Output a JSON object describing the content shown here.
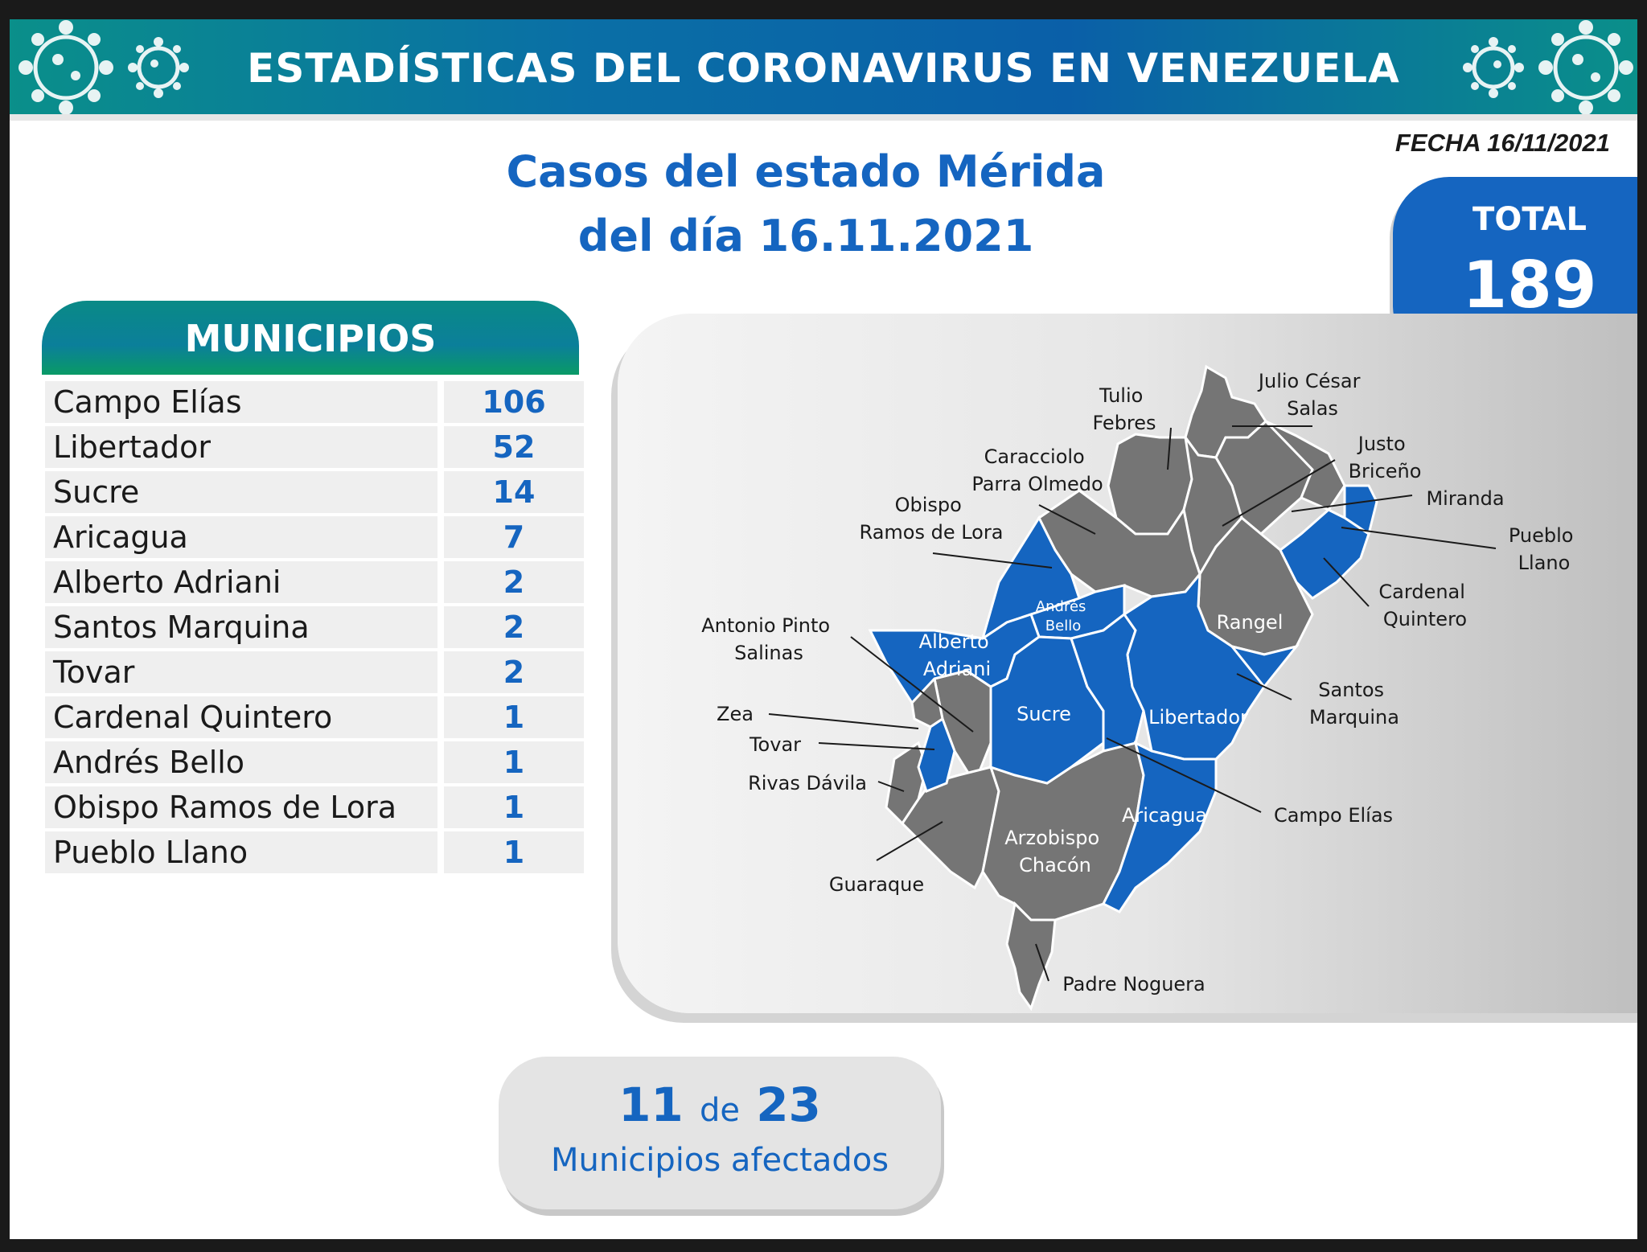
{
  "banner": {
    "title": "ESTADÍSTICAS DEL CORONAVIRUS EN VENEZUELA",
    "icons": [
      "virus-icon",
      "virus-icon"
    ]
  },
  "fecha": "FECHA 16/11/2021",
  "title": {
    "line1": "Casos del estado Mérida",
    "line2": "del día 16.11.2021"
  },
  "total": {
    "label": "TOTAL",
    "value": "189"
  },
  "municipios": {
    "header": "MUNICIPIOS",
    "rows": [
      {
        "name": "Campo Elías",
        "value": "106"
      },
      {
        "name": "Libertador",
        "value": "52"
      },
      {
        "name": "Sucre",
        "value": "14"
      },
      {
        "name": "Aricagua",
        "value": "7"
      },
      {
        "name": "Alberto Adriani",
        "value": "2"
      },
      {
        "name": "Santos Marquina",
        "value": "2"
      },
      {
        "name": "Tovar",
        "value": "2"
      },
      {
        "name": "Cardenal Quintero",
        "value": "1"
      },
      {
        "name": "Andrés Bello",
        "value": "1"
      },
      {
        "name": "Obispo Ramos de Lora",
        "value": "1"
      },
      {
        "name": "Pueblo Llano",
        "value": "1"
      }
    ]
  },
  "map": {
    "colors": {
      "affected": "#1565c0",
      "unaffected": "#757575"
    },
    "outer_labels": {
      "tulio_febres": [
        "Tulio",
        "Febres"
      ],
      "julio_cesar_salas": [
        "Julio César",
        "Salas"
      ],
      "justo_briceno": [
        "Justo",
        "Briceño"
      ],
      "caracciolo": [
        "Caracciolo",
        "Parra Olmedo"
      ],
      "miranda": [
        "Miranda"
      ],
      "obispo": [
        "Obispo",
        "Ramos de Lora"
      ],
      "pueblo_llano": [
        "Pueblo",
        "Llano"
      ],
      "cardenal_quintero": [
        "Cardenal",
        "Quintero"
      ],
      "antonio_pinto": [
        "Antonio Pinto",
        "Salinas"
      ],
      "santos_marquina": [
        "Santos",
        "Marquina"
      ],
      "zea": [
        "Zea"
      ],
      "tovar": [
        "Tovar"
      ],
      "rivas_davila": [
        "Rivas Dávila"
      ],
      "campo_elias": [
        "Campo Elías"
      ],
      "guaraque": [
        "Guaraque"
      ],
      "padre_noguera": [
        "Padre Noguera"
      ]
    },
    "inner_labels": {
      "andres_bello": [
        "Andrés",
        "Bello"
      ],
      "alberto_adriani": [
        "Alberto",
        "Adriani"
      ],
      "rangel": [
        "Rangel"
      ],
      "sucre": [
        "Sucre"
      ],
      "libertador": [
        "Libertador"
      ],
      "aricagua": [
        "Aricagua"
      ],
      "arzobispo_chacon": [
        "Arzobispo",
        "Chacón"
      ]
    }
  },
  "affected": {
    "count": "11",
    "de": "de",
    "total": "23",
    "label": "Municipios afectados"
  }
}
